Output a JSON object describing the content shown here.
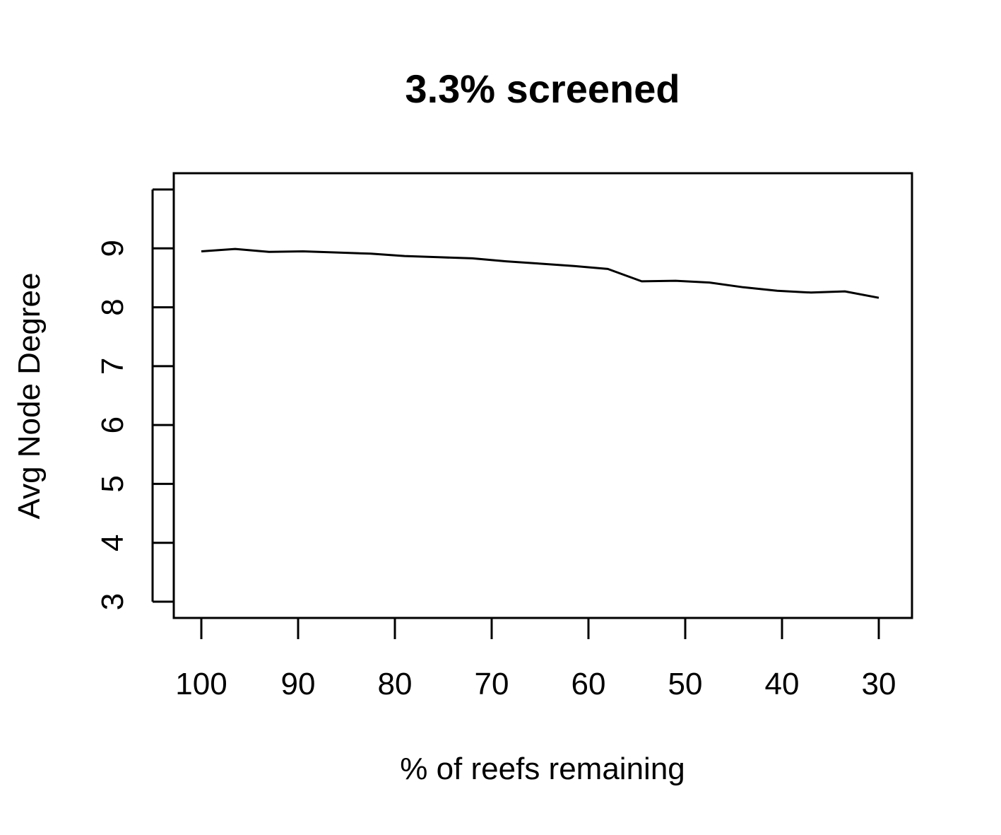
{
  "chart_data": {
    "type": "line",
    "title": "3.3% screened",
    "xlabel": "% of reefs remaining",
    "ylabel": "Avg Node Degree",
    "x_reversed": true,
    "xlim": [
      100,
      30
    ],
    "ylim": [
      3,
      10
    ],
    "xticks": [
      100,
      90,
      80,
      70,
      60,
      50,
      40,
      30
    ],
    "xtick_labels": [
      "100",
      "90",
      "80",
      "70",
      "60",
      "50",
      "40",
      "30"
    ],
    "yticks": [
      3,
      4,
      5,
      6,
      7,
      8,
      9,
      10
    ],
    "ytick_labels": [
      "3",
      "4",
      "5",
      "6",
      "7",
      "8",
      "9",
      ""
    ],
    "grid": false,
    "series": [
      {
        "color": "#000000",
        "x": [
          100,
          96.5,
          93,
          89.5,
          86,
          82.5,
          79,
          75.5,
          72,
          68.5,
          65,
          61.5,
          58,
          54.5,
          51,
          47.5,
          44,
          40.5,
          37,
          33.5,
          30
        ],
        "y": [
          8.95,
          8.99,
          8.94,
          8.95,
          8.93,
          8.91,
          8.87,
          8.85,
          8.83,
          8.78,
          8.74,
          8.7,
          8.65,
          8.44,
          8.45,
          8.42,
          8.34,
          8.28,
          8.25,
          8.27,
          8.16
        ]
      }
    ]
  }
}
